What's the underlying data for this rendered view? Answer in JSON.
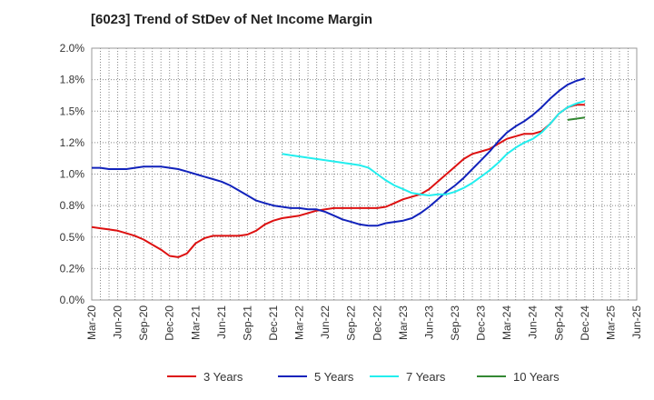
{
  "chart_data": {
    "type": "line",
    "title": "[6023]  Trend of StDev of Net Income Margin",
    "xlabel": "",
    "ylabel": "",
    "ylim": [
      0,
      2.0
    ],
    "y_ticks": [
      "0.0%",
      "0.2%",
      "0.5%",
      "0.8%",
      "1.0%",
      "1.2%",
      "1.5%",
      "1.8%",
      "2.0%"
    ],
    "y_tick_values": [
      0,
      0.25,
      0.5,
      0.75,
      1.0,
      1.25,
      1.5,
      1.75,
      2.0
    ],
    "x_ticks": [
      "Mar-20",
      "Jun-20",
      "Sep-20",
      "Dec-20",
      "Mar-21",
      "Jun-21",
      "Sep-21",
      "Dec-21",
      "Mar-22",
      "Jun-22",
      "Sep-22",
      "Dec-22",
      "Mar-23",
      "Jun-23",
      "Sep-23",
      "Dec-23",
      "Mar-24",
      "Jun-24",
      "Sep-24",
      "Dec-24",
      "Mar-25",
      "Jun-25"
    ],
    "grid": true,
    "legend_position": "bottom",
    "series": [
      {
        "name": "3 Years",
        "color": "#dd1111",
        "values": [
          0.58,
          0.57,
          0.56,
          0.55,
          0.53,
          0.51,
          0.48,
          0.44,
          0.4,
          0.35,
          0.34,
          0.37,
          0.45,
          0.49,
          0.51,
          0.51,
          0.51,
          0.51,
          0.52,
          0.55,
          0.6,
          0.63,
          0.65,
          0.66,
          0.67,
          0.69,
          0.71,
          0.72,
          0.73,
          0.73,
          0.73,
          0.73,
          0.73,
          0.73,
          0.74,
          0.77,
          0.8,
          0.82,
          0.84,
          0.88,
          0.94,
          1.0,
          1.06,
          1.12,
          1.16,
          1.18,
          1.2,
          1.24,
          1.28,
          1.3,
          1.32,
          1.32,
          1.34,
          1.4,
          1.48,
          1.53,
          1.55,
          1.55
        ]
      },
      {
        "name": "5 Years",
        "color": "#1122bb",
        "values": [
          1.05,
          1.05,
          1.04,
          1.04,
          1.04,
          1.05,
          1.06,
          1.06,
          1.06,
          1.05,
          1.04,
          1.02,
          1.0,
          0.98,
          0.96,
          0.94,
          0.91,
          0.87,
          0.83,
          0.79,
          0.77,
          0.75,
          0.74,
          0.73,
          0.73,
          0.72,
          0.72,
          0.7,
          0.67,
          0.64,
          0.62,
          0.6,
          0.59,
          0.59,
          0.61,
          0.62,
          0.63,
          0.65,
          0.69,
          0.74,
          0.8,
          0.86,
          0.91,
          0.97,
          1.04,
          1.11,
          1.18,
          1.26,
          1.33,
          1.38,
          1.42,
          1.47,
          1.53,
          1.6,
          1.66,
          1.71,
          1.74,
          1.76
        ]
      },
      {
        "name": "7 Years",
        "color": "#22eeee",
        "values": [
          null,
          null,
          null,
          null,
          null,
          null,
          null,
          null,
          null,
          null,
          null,
          null,
          null,
          null,
          null,
          null,
          null,
          null,
          null,
          null,
          null,
          null,
          1.16,
          1.15,
          1.14,
          1.13,
          1.12,
          1.11,
          1.1,
          1.09,
          1.08,
          1.07,
          1.05,
          1.0,
          0.95,
          0.91,
          0.88,
          0.85,
          0.84,
          0.83,
          0.84,
          0.84,
          0.86,
          0.89,
          0.93,
          0.98,
          1.03,
          1.09,
          1.16,
          1.21,
          1.25,
          1.28,
          1.33,
          1.4,
          1.48,
          1.53,
          1.56,
          1.58
        ]
      },
      {
        "name": "10 Years",
        "color": "#338833",
        "values": [
          null,
          null,
          null,
          null,
          null,
          null,
          null,
          null,
          null,
          null,
          null,
          null,
          null,
          null,
          null,
          null,
          null,
          null,
          null,
          null,
          null,
          null,
          null,
          null,
          null,
          null,
          null,
          null,
          null,
          null,
          null,
          null,
          null,
          null,
          null,
          null,
          null,
          null,
          null,
          null,
          null,
          null,
          null,
          null,
          null,
          null,
          null,
          null,
          null,
          null,
          null,
          null,
          null,
          null,
          null,
          1.43,
          1.44,
          1.45
        ]
      }
    ]
  }
}
